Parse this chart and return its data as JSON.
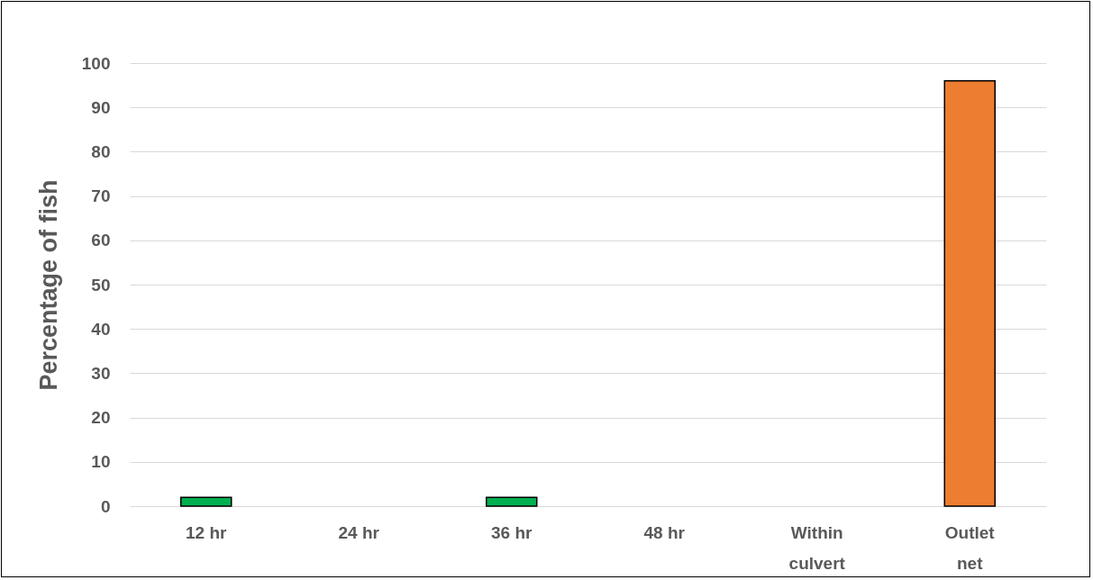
{
  "chart_data": {
    "type": "bar",
    "ylabel": "Percentage of fish",
    "categories": [
      "12 hr",
      "24 hr",
      "36 hr",
      "48 hr",
      "Within culvert",
      "Outlet net"
    ],
    "values": [
      2,
      0,
      2,
      0,
      0,
      96
    ],
    "colors": [
      "#00b050",
      "#00b050",
      "#00b050",
      "#00b050",
      "#ed7d31",
      "#ed7d31"
    ],
    "ylim": [
      0,
      100
    ],
    "yticks": [
      0,
      10,
      20,
      30,
      40,
      50,
      60,
      70,
      80,
      90,
      100
    ],
    "grid": "y"
  }
}
